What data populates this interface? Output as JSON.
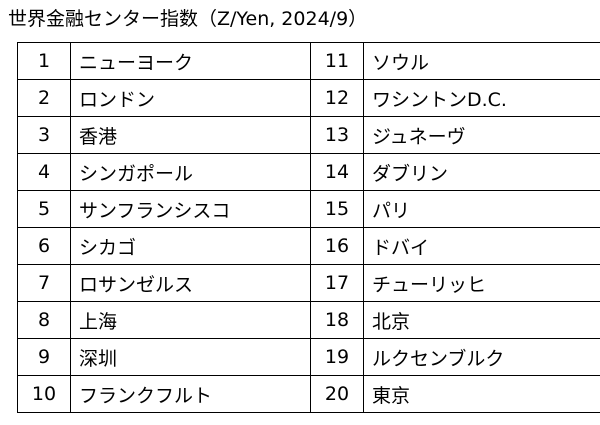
{
  "title": "世界金融センター指数（Z/Yen, 2024/9）",
  "rows": [
    {
      "left": {
        "rank": "1",
        "city": "ニューヨーク"
      },
      "right": {
        "rank": "11",
        "city": "ソウル"
      }
    },
    {
      "left": {
        "rank": "2",
        "city": "ロンドン"
      },
      "right": {
        "rank": "12",
        "city": "ワシントンD.C."
      }
    },
    {
      "left": {
        "rank": "3",
        "city": "香港"
      },
      "right": {
        "rank": "13",
        "city": "ジュネーヴ"
      }
    },
    {
      "left": {
        "rank": "4",
        "city": "シンガポール"
      },
      "right": {
        "rank": "14",
        "city": "ダブリン"
      }
    },
    {
      "left": {
        "rank": "5",
        "city": "サンフランシスコ"
      },
      "right": {
        "rank": "15",
        "city": "パリ"
      }
    },
    {
      "left": {
        "rank": "6",
        "city": "シカゴ"
      },
      "right": {
        "rank": "16",
        "city": "ドバイ"
      }
    },
    {
      "left": {
        "rank": "7",
        "city": "ロサンゼルス"
      },
      "right": {
        "rank": "17",
        "city": "チューリッヒ"
      }
    },
    {
      "left": {
        "rank": "8",
        "city": "上海"
      },
      "right": {
        "rank": "18",
        "city": "北京"
      }
    },
    {
      "left": {
        "rank": "9",
        "city": "深圳"
      },
      "right": {
        "rank": "19",
        "city": "ルクセンブルク"
      }
    },
    {
      "left": {
        "rank": "10",
        "city": "フランクフルト"
      },
      "right": {
        "rank": "20",
        "city": "東京"
      }
    }
  ]
}
